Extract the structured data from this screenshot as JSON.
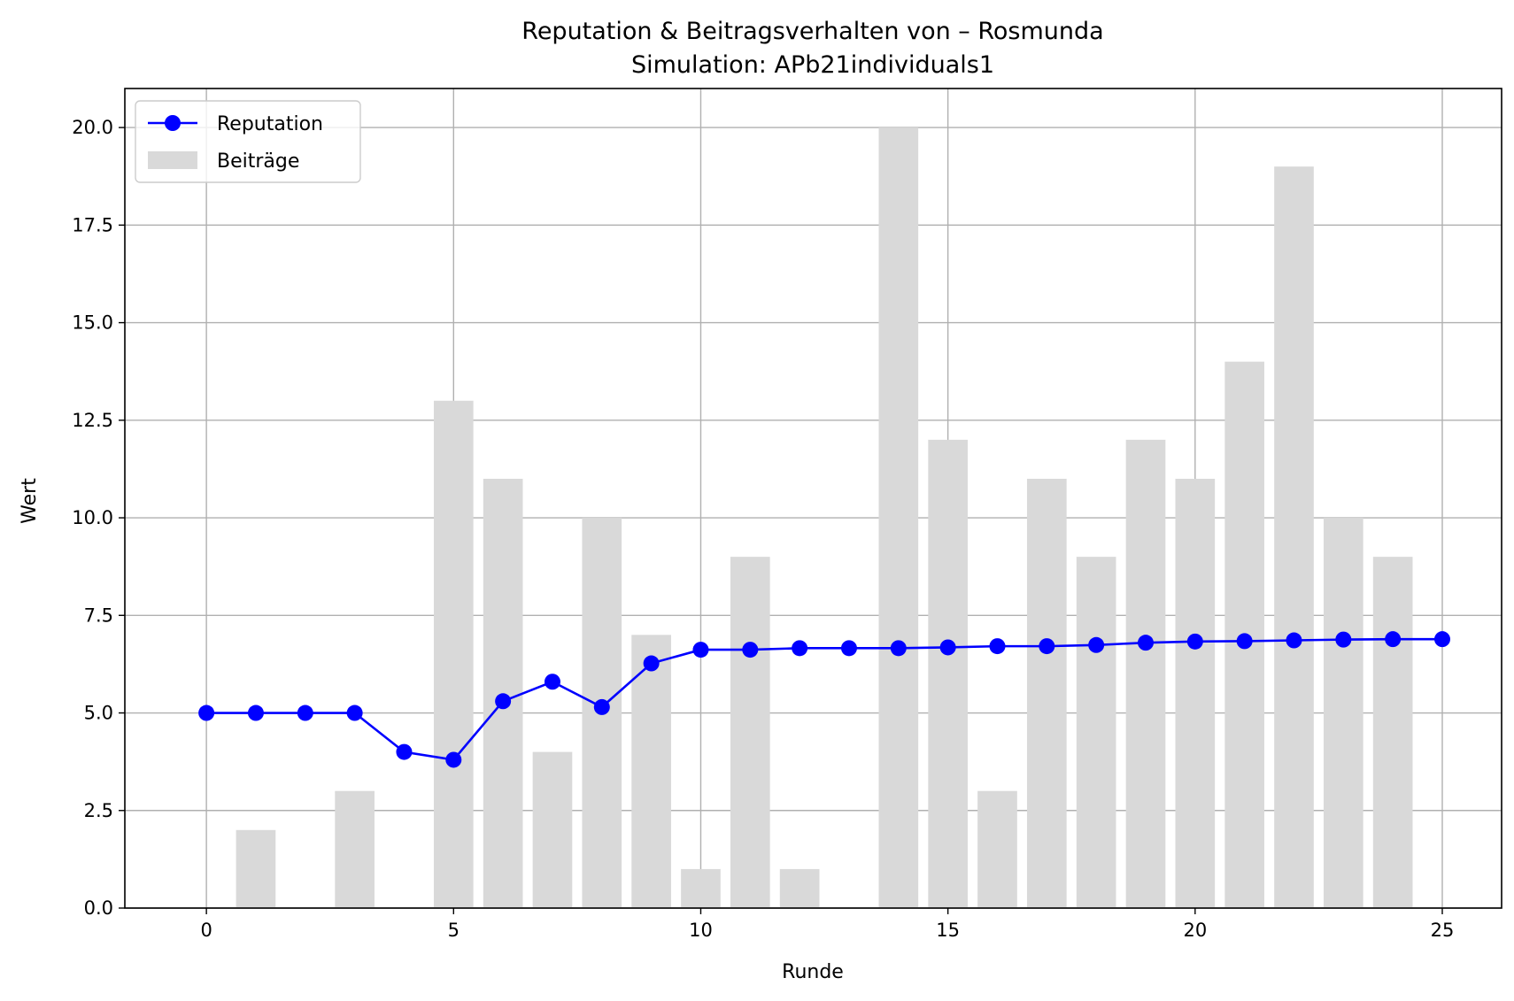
{
  "chart_data": {
    "type": "bar+line",
    "title": "Reputation & Beitragsverhalten von – Rosmunda",
    "subtitle": "Simulation: APb21individuals1",
    "xlabel": "Runde",
    "ylabel": "Wert",
    "xlim": [
      -1.65,
      26.2
    ],
    "ylim": [
      0,
      21
    ],
    "xticks": [
      0,
      5,
      10,
      15,
      20,
      25
    ],
    "yticks": [
      0.0,
      2.5,
      5.0,
      7.5,
      10.0,
      12.5,
      15.0,
      17.5,
      20.0
    ],
    "xtick_labels": [
      "0",
      "5",
      "10",
      "15",
      "20",
      "25"
    ],
    "ytick_labels": [
      "0.0",
      "2.5",
      "5.0",
      "7.5",
      "10.0",
      "12.5",
      "15.0",
      "17.5",
      "20.0"
    ],
    "grid": true,
    "legend_position": "top-left",
    "bar_series": {
      "name": "Beiträge",
      "color": "#d9d9d9",
      "x": [
        0,
        1,
        2,
        3,
        4,
        5,
        6,
        7,
        8,
        9,
        10,
        11,
        12,
        13,
        14,
        15,
        16,
        17,
        18,
        19,
        20,
        21,
        22,
        23,
        24
      ],
      "values": [
        0,
        2,
        0,
        3,
        0,
        13,
        11,
        4,
        10,
        7,
        1,
        9,
        1,
        0,
        20,
        12,
        3,
        11,
        9,
        12,
        11,
        14,
        19,
        10,
        9
      ]
    },
    "line_series": {
      "name": "Reputation",
      "color": "#0000ff",
      "x": [
        0,
        1,
        2,
        3,
        4,
        5,
        6,
        7,
        8,
        9,
        10,
        11,
        12,
        13,
        14,
        15,
        16,
        17,
        18,
        19,
        20,
        21,
        22,
        23,
        24,
        25
      ],
      "values": [
        5.0,
        5.0,
        5.0,
        5.0,
        4.0,
        3.8,
        5.3,
        5.8,
        5.15,
        6.27,
        6.62,
        6.62,
        6.66,
        6.66,
        6.66,
        6.68,
        6.71,
        6.71,
        6.74,
        6.8,
        6.83,
        6.84,
        6.86,
        6.88,
        6.89,
        6.89
      ]
    }
  }
}
